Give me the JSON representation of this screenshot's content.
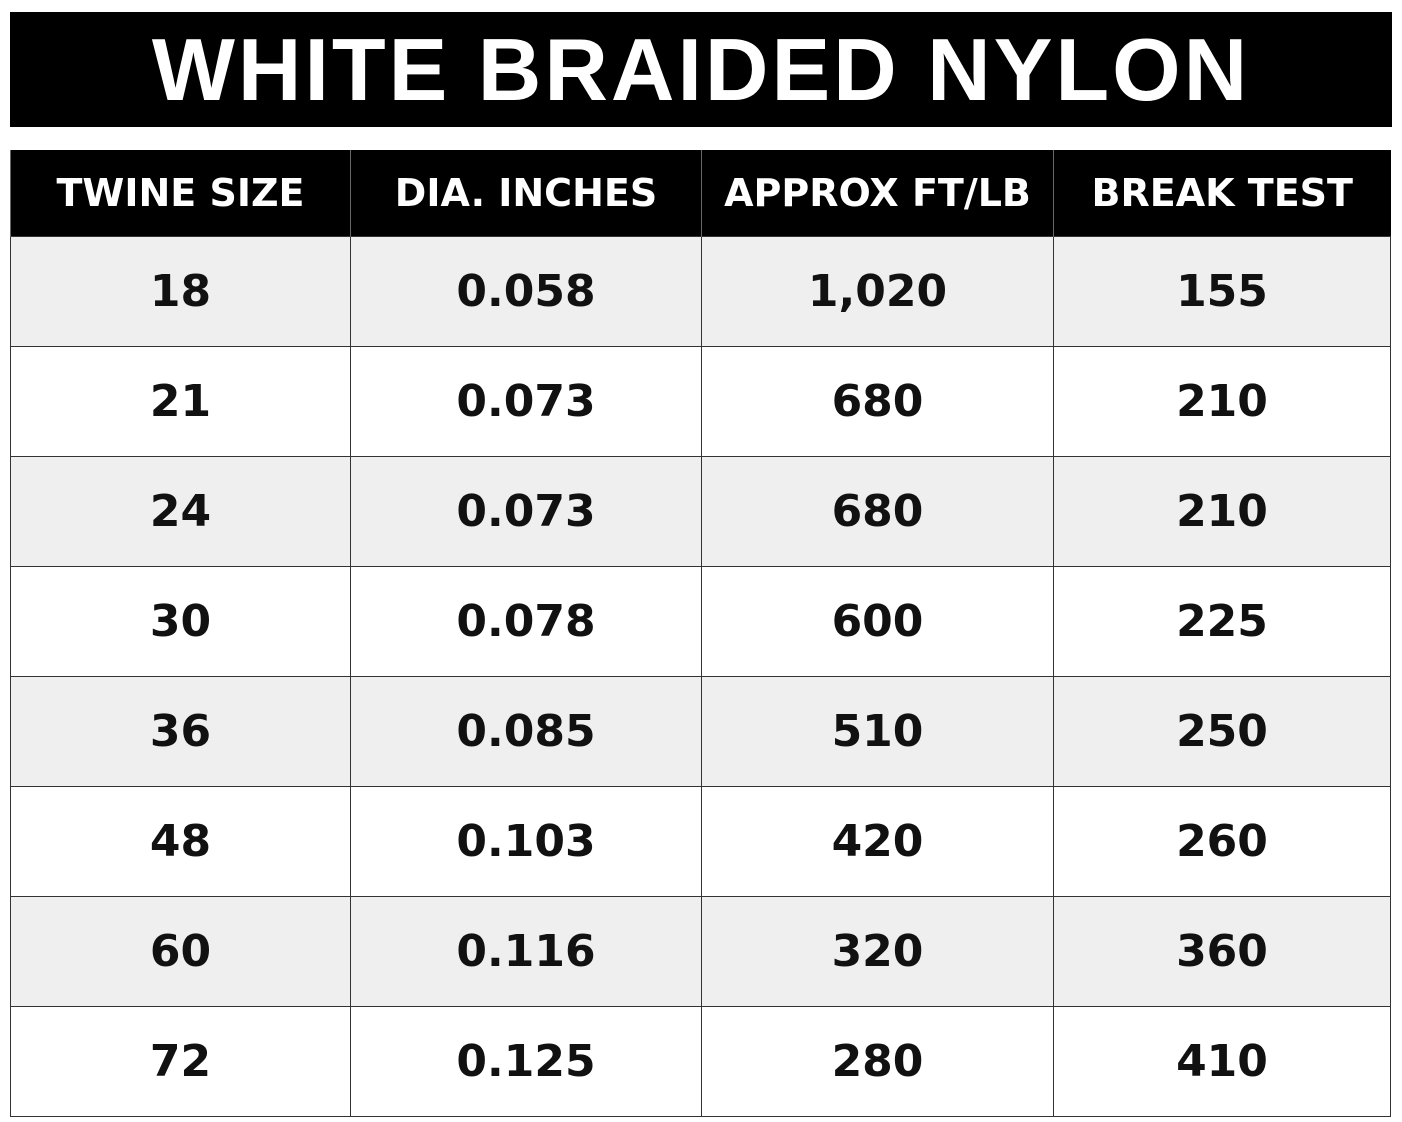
{
  "header": {
    "title": "WHITE BRAIDED NYLON"
  },
  "table": {
    "columns": [
      "TWINE SIZE",
      "DIA. INCHES",
      "APPROX FT/LB",
      "BREAK TEST"
    ],
    "rows": [
      [
        "18",
        "0.058",
        "1,020",
        "155"
      ],
      [
        "21",
        "0.073",
        "680",
        "210"
      ],
      [
        "24",
        "0.073",
        "680",
        "210"
      ],
      [
        "30",
        "0.078",
        "600",
        "225"
      ],
      [
        "36",
        "0.085",
        "510",
        "250"
      ],
      [
        "48",
        "0.103",
        "420",
        "260"
      ],
      [
        "60",
        "0.116",
        "320",
        "360"
      ],
      [
        "72",
        "0.125",
        "280",
        "410"
      ]
    ]
  }
}
